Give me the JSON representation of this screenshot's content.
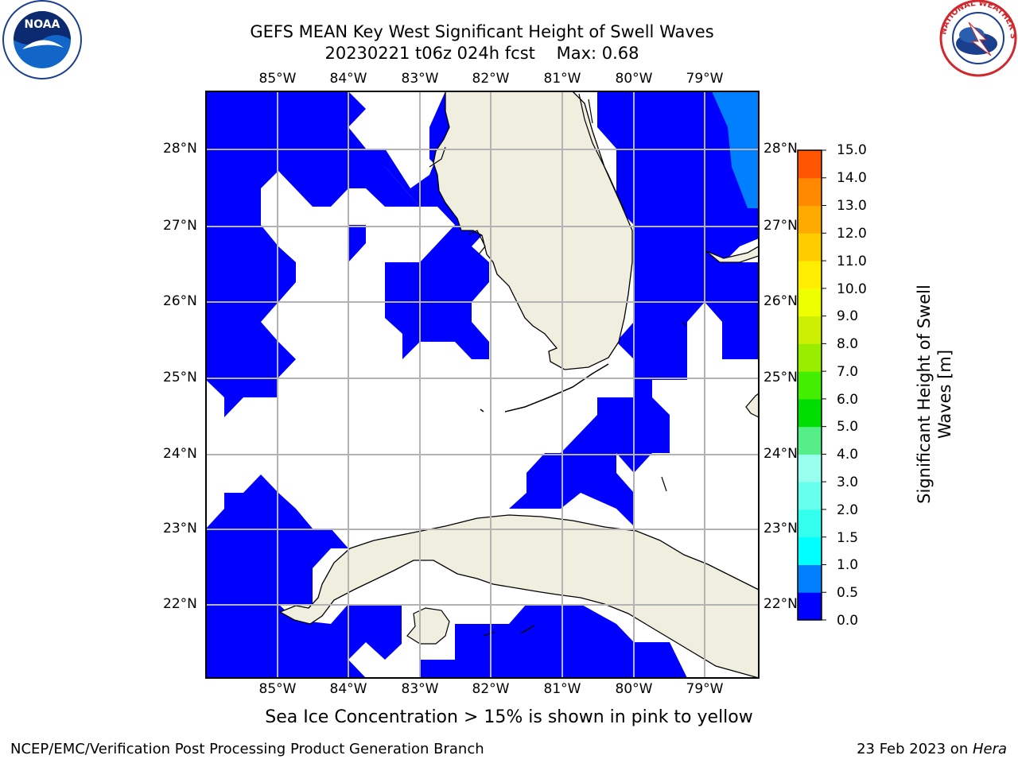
{
  "title": {
    "line1": "GEFS MEAN Key West Significant Height of Swell Waves",
    "line2_run": "20230221 t06z 024h fcst",
    "line2_max": "Max: 0.68"
  },
  "map": {
    "lon_labels": [
      "85°W",
      "84°W",
      "83°W",
      "82°W",
      "81°W",
      "80°W",
      "79°W"
    ],
    "lat_labels": [
      "28°N",
      "27°N",
      "26°N",
      "25°N",
      "24°N",
      "23°N",
      "22°N"
    ],
    "lon_range": [
      -86,
      -78.3
    ],
    "lat_range": [
      21,
      28.8
    ],
    "colors": {
      "land": "#efeedf",
      "swell_low": "#0000ff",
      "swell_mid": "#0080ff",
      "grid": "#b3b3b3"
    }
  },
  "colorbar": {
    "label": "Significant Height of Swell Waves [m]",
    "ticks": [
      "15.0",
      "14.0",
      "13.0",
      "12.0",
      "11.0",
      "10.0",
      "9.0",
      "8.0",
      "7.0",
      "6.0",
      "5.0",
      "4.0",
      "3.0",
      "2.0",
      "1.5",
      "1.0",
      "0.5",
      "0.0"
    ],
    "levels": [
      0,
      0.5,
      1,
      1.5,
      2,
      3,
      4,
      5,
      6,
      7,
      8,
      9,
      10,
      11,
      12,
      13,
      14,
      15
    ],
    "bin_colors": [
      "#0000ff",
      "#0080ff",
      "#00ffff",
      "#33ffee",
      "#66ffee",
      "#99ffee",
      "#55ee88",
      "#00dd00",
      "#44ee00",
      "#99ee00",
      "#ccee00",
      "#eeff00",
      "#ffee00",
      "#ffcc00",
      "#ffaa00",
      "#ff8800",
      "#ff5500",
      "#ff2200"
    ]
  },
  "footer": {
    "note": "Sea Ice Concentration > 15% is shown in pink to yellow",
    "branch": "NCEP/EMC/Verification Post Processing Product Generation Branch",
    "date": "23 Feb 2023 on ",
    "host": "Hera"
  },
  "logos": {
    "noaa_text": "NOAA",
    "nws_text": "NATIONAL WEATHER SERVICE"
  }
}
